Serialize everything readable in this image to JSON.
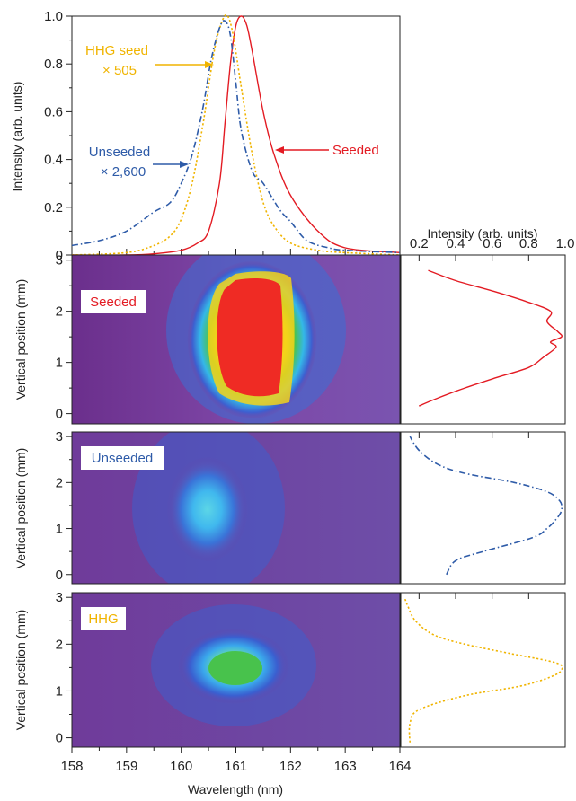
{
  "colors": {
    "seeded": "#e31b23",
    "unseeded": "#2e5ba8",
    "hhg": "#f0b400",
    "axis": "#222222",
    "background": "#7b3f9c"
  },
  "chart_data": [
    {
      "type": "line",
      "panel": "spectrum",
      "xlabel": "Wavelength (nm)",
      "ylabel": "Intensity (arb. units)",
      "xlim": [
        158,
        164
      ],
      "ylim": [
        0,
        1.0
      ],
      "xticks": [
        "158",
        "159",
        "160",
        "161",
        "162",
        "163",
        "164"
      ],
      "yticks": [
        "0",
        "0.2",
        "0.4",
        "0.6",
        "0.8",
        "1.0"
      ],
      "annotations": [
        {
          "text": "HHG seed",
          "series": "HHG seed"
        },
        {
          "text": "× 505",
          "series": "HHG seed"
        },
        {
          "text": "Unseeded",
          "series": "Unseeded"
        },
        {
          "text": "× 2,600",
          "series": "Unseeded"
        },
        {
          "text": "Seeded",
          "series": "Seeded"
        }
      ],
      "series": [
        {
          "name": "Seeded",
          "style": "solid",
          "x": [
            158.0,
            159.0,
            159.5,
            160.0,
            160.3,
            160.5,
            160.7,
            160.8,
            160.9,
            161.0,
            161.1,
            161.2,
            161.3,
            161.5,
            161.7,
            162.0,
            162.5,
            163.0,
            164.0
          ],
          "y": [
            0.0,
            0.0,
            0.005,
            0.02,
            0.05,
            0.1,
            0.3,
            0.55,
            0.8,
            0.96,
            1.0,
            0.96,
            0.85,
            0.6,
            0.42,
            0.25,
            0.1,
            0.03,
            0.01
          ]
        },
        {
          "name": "HHG seed",
          "style": "dotted",
          "x": [
            158.0,
            159.0,
            159.5,
            159.8,
            160.0,
            160.2,
            160.4,
            160.6,
            160.75,
            160.85,
            160.95,
            161.1,
            161.3,
            161.5,
            161.7,
            162.0,
            162.5,
            163.0,
            164.0
          ],
          "y": [
            0.0,
            0.01,
            0.04,
            0.08,
            0.15,
            0.3,
            0.55,
            0.85,
            0.98,
            1.0,
            0.92,
            0.7,
            0.42,
            0.22,
            0.12,
            0.05,
            0.02,
            0.01,
            0.0
          ]
        },
        {
          "name": "Unseeded",
          "style": "dash-dot",
          "x": [
            158.0,
            158.5,
            159.0,
            159.5,
            159.8,
            160.0,
            160.2,
            160.4,
            160.55,
            160.7,
            160.8,
            160.9,
            161.0,
            161.1,
            161.3,
            161.5,
            161.8,
            162.0,
            162.3,
            162.7,
            163.0,
            164.0
          ],
          "y": [
            0.04,
            0.06,
            0.1,
            0.18,
            0.22,
            0.3,
            0.42,
            0.62,
            0.82,
            0.95,
            0.98,
            0.92,
            0.72,
            0.52,
            0.35,
            0.3,
            0.19,
            0.14,
            0.06,
            0.03,
            0.02,
            0.01
          ]
        }
      ]
    },
    {
      "type": "heatmap",
      "panel": "image",
      "label": "Seeded",
      "xlim": [
        158,
        164
      ],
      "ylim": [
        -0.2,
        3.1
      ],
      "ylabel": "Vertical position (mm)",
      "yticks": [
        "0",
        "1",
        "2",
        "3"
      ],
      "blob": {
        "x_center": 160.9,
        "y_center": 1.5,
        "x_halfwidth": 1.5,
        "y_halfwidth": 1.55
      }
    },
    {
      "type": "heatmap",
      "panel": "image",
      "label": "Unseeded",
      "xlim": [
        158,
        164
      ],
      "ylim": [
        -0.2,
        3.1
      ],
      "ylabel": "Vertical position (mm)",
      "yticks": [
        "0",
        "1",
        "2",
        "3"
      ],
      "blob": {
        "x_center": 160.6,
        "y_center": 1.7,
        "x_halfwidth": 0.7,
        "y_halfwidth": 0.9
      }
    },
    {
      "type": "heatmap",
      "panel": "image",
      "label": "HHG",
      "xlim": [
        158,
        164
      ],
      "ylim": [
        -0.2,
        3.1
      ],
      "ylabel": "Vertical position (mm)",
      "yticks": [
        "0",
        "1",
        "2",
        "3"
      ],
      "blob": {
        "x_center": 160.95,
        "y_center": 1.55,
        "x_halfwidth": 0.9,
        "y_halfwidth": 0.6
      }
    },
    {
      "type": "line",
      "panel": "profiles",
      "xlabel": "Intensity (arb. units)",
      "xlim": [
        0.1,
        1.0
      ],
      "xticks": [
        "0.2",
        "0.4",
        "0.6",
        "0.8",
        "1.0"
      ],
      "series": [
        {
          "name": "Seeded",
          "style": "solid",
          "y": [
            0.15,
            0.3,
            0.5,
            0.7,
            0.9,
            1.1,
            1.3,
            1.4,
            1.5,
            1.6,
            1.8,
            2.0,
            2.2,
            2.4,
            2.6,
            2.8
          ],
          "intensity": [
            0.2,
            0.3,
            0.45,
            0.62,
            0.8,
            0.88,
            0.95,
            0.92,
            0.98,
            0.96,
            0.9,
            0.92,
            0.78,
            0.6,
            0.4,
            0.25
          ]
        },
        {
          "name": "Unseeded",
          "style": "dash-dot",
          "y": [
            0.0,
            0.3,
            0.5,
            0.8,
            1.0,
            1.2,
            1.4,
            1.6,
            1.8,
            2.0,
            2.2,
            2.4,
            2.7,
            3.0
          ],
          "intensity": [
            0.35,
            0.4,
            0.55,
            0.82,
            0.9,
            0.95,
            0.98,
            0.97,
            0.9,
            0.72,
            0.45,
            0.3,
            0.2,
            0.15
          ]
        },
        {
          "name": "HHG",
          "style": "dotted",
          "y": [
            -0.1,
            0.3,
            0.6,
            0.9,
            1.1,
            1.3,
            1.45,
            1.6,
            1.8,
            2.0,
            2.2,
            2.5,
            2.8,
            3.0
          ],
          "intensity": [
            0.15,
            0.15,
            0.2,
            0.45,
            0.75,
            0.92,
            0.98,
            0.95,
            0.7,
            0.45,
            0.28,
            0.18,
            0.14,
            0.12
          ]
        }
      ]
    }
  ]
}
